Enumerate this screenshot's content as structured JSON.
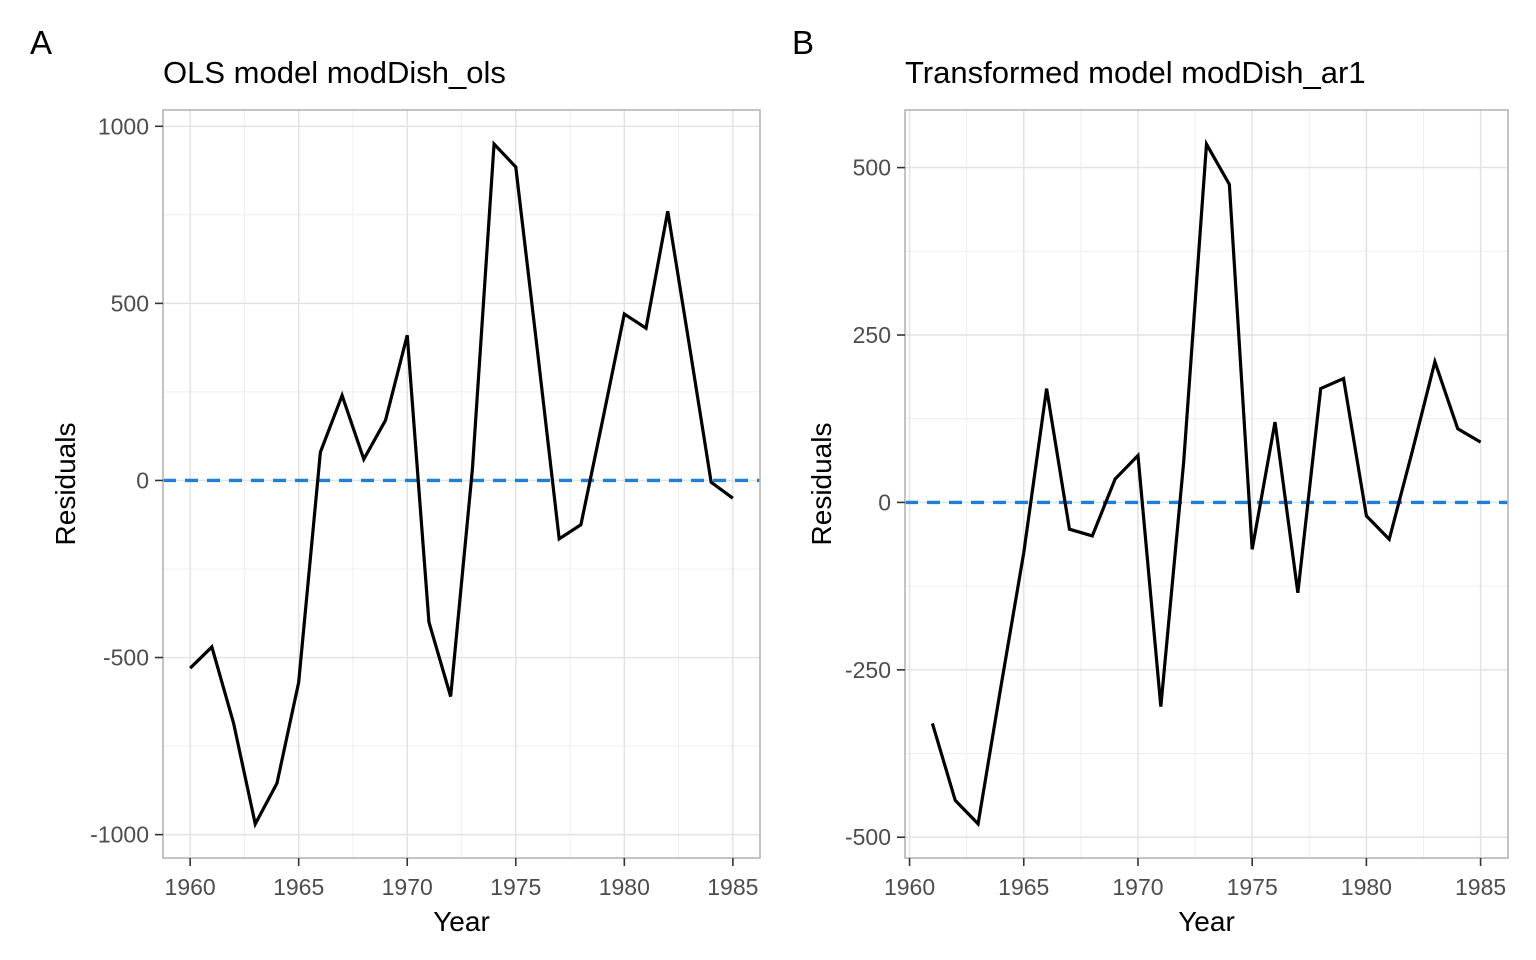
{
  "figure": {
    "background": "#ffffff",
    "colors": {
      "series_line": "#000000",
      "zero_line": "#1e7fd8",
      "grid_major": "#e2e2e2",
      "grid_minor": "#f0f0f0",
      "panel_border": "#b5b5b5",
      "tick_mark": "#333333",
      "tick_label": "#4d4d4d"
    }
  },
  "panels": [
    {
      "tag": "A",
      "title": "OLS model modDish_ols",
      "xlabel": "Year",
      "ylabel": "Residuals"
    },
    {
      "tag": "B",
      "title": "Transformed model modDish_ar1",
      "xlabel": "Year",
      "ylabel": "Residuals"
    }
  ],
  "chart_data": [
    {
      "type": "line",
      "title": "OLS model modDish_ols",
      "xlabel": "Year",
      "ylabel": "Residuals",
      "x": [
        1960,
        1961,
        1962,
        1963,
        1964,
        1965,
        1966,
        1967,
        1968,
        1969,
        1970,
        1971,
        1972,
        1973,
        1974,
        1975,
        1976,
        1977,
        1978,
        1979,
        1980,
        1981,
        1982,
        1983,
        1984,
        1985
      ],
      "y": [
        -530,
        -470,
        -685,
        -970,
        -855,
        -570,
        80,
        240,
        60,
        170,
        410,
        -400,
        -610,
        30,
        950,
        885,
        365,
        -165,
        -125,
        170,
        470,
        430,
        760,
        380,
        -5,
        -50
      ],
      "zero_line": 0,
      "xticks": [
        1960,
        1965,
        1970,
        1975,
        1980,
        1985
      ],
      "xtick_labels": [
        "1960",
        "1965",
        "1970",
        "1975",
        "1980",
        "1985"
      ],
      "x_minor": [
        1962.5,
        1967.5,
        1972.5,
        1977.5,
        1982.5
      ],
      "yticks": [
        -1000,
        -500,
        0,
        500,
        1000
      ],
      "ytick_labels": [
        "-1000",
        "-500",
        "0",
        "500",
        "1000"
      ],
      "y_minor": [
        -750,
        -250,
        250,
        750
      ],
      "xlim": [
        1958.75,
        1986.25
      ],
      "ylim": [
        -1066,
        1046
      ],
      "grid": true,
      "legend_position": "none"
    },
    {
      "type": "line",
      "title": "Transformed model modDish_ar1",
      "xlabel": "Year",
      "ylabel": "Residuals",
      "x": [
        1961,
        1962,
        1963,
        1964,
        1965,
        1966,
        1967,
        1968,
        1969,
        1970,
        1971,
        1972,
        1973,
        1974,
        1975,
        1976,
        1977,
        1978,
        1979,
        1980,
        1981,
        1982,
        1983,
        1984,
        1985
      ],
      "y": [
        -330,
        -445,
        -480,
        -275,
        -75,
        170,
        -40,
        -50,
        35,
        70,
        -305,
        60,
        535,
        475,
        -70,
        120,
        -135,
        170,
        185,
        -20,
        -55,
        75,
        210,
        110,
        90
      ],
      "zero_line": 0,
      "xticks": [
        1960,
        1965,
        1970,
        1975,
        1980,
        1985
      ],
      "xtick_labels": [
        "1960",
        "1965",
        "1970",
        "1975",
        "1980",
        "1985"
      ],
      "x_minor": [
        1962.5,
        1967.5,
        1972.5,
        1977.5,
        1982.5
      ],
      "yticks": [
        -500,
        -250,
        0,
        250,
        500
      ],
      "ytick_labels": [
        "-500",
        "-250",
        "0",
        "250",
        "500"
      ],
      "y_minor": [
        -375,
        -125,
        125,
        375
      ],
      "xlim": [
        1959.8,
        1986.2
      ],
      "ylim": [
        -531,
        586
      ],
      "grid": true,
      "legend_position": "none"
    }
  ]
}
